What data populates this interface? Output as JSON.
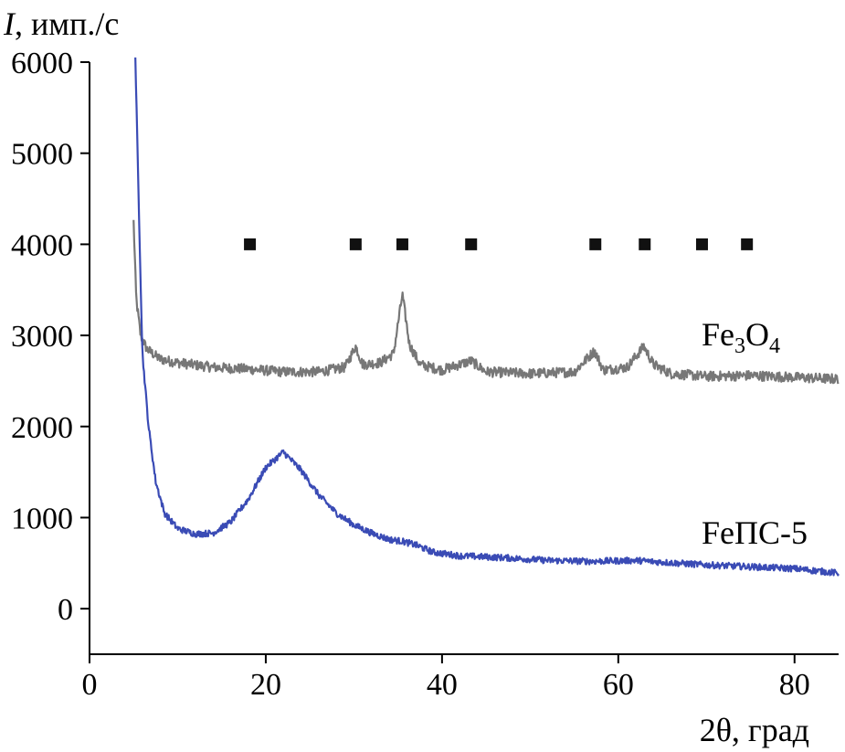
{
  "chart_data": {
    "type": "line",
    "ylabel_symbol": "I",
    "ylabel_unit": ", имп./с",
    "xlabel": "2θ, град",
    "xlim": [
      0,
      85
    ],
    "ylim": [
      -500,
      6000
    ],
    "yticks": [
      0,
      1000,
      2000,
      3000,
      4000,
      5000,
      6000
    ],
    "xticks": [
      0,
      20,
      40,
      60,
      80
    ],
    "grid": false,
    "series": [
      {
        "label_main": "Fe",
        "label_sub1": "3",
        "label_mid": "O",
        "label_sub2": "4",
        "color": "#777777",
        "keypoints": [
          [
            5.0,
            4250
          ],
          [
            5.3,
            3400
          ],
          [
            5.8,
            3000
          ],
          [
            6.5,
            2850
          ],
          [
            8,
            2740
          ],
          [
            10,
            2700
          ],
          [
            14,
            2650
          ],
          [
            18,
            2630
          ],
          [
            22,
            2600
          ],
          [
            26,
            2600
          ],
          [
            29,
            2650
          ],
          [
            30.2,
            2880
          ],
          [
            31,
            2680
          ],
          [
            33,
            2700
          ],
          [
            34.5,
            2800
          ],
          [
            35.5,
            3450
          ],
          [
            36.3,
            2900
          ],
          [
            37.5,
            2680
          ],
          [
            40,
            2620
          ],
          [
            43.3,
            2720
          ],
          [
            45,
            2600
          ],
          [
            50,
            2580
          ],
          [
            55,
            2600
          ],
          [
            57.3,
            2830
          ],
          [
            58.3,
            2620
          ],
          [
            61,
            2650
          ],
          [
            62.9,
            2880
          ],
          [
            64,
            2680
          ],
          [
            66,
            2580
          ],
          [
            70,
            2550
          ],
          [
            75,
            2560
          ],
          [
            80,
            2540
          ],
          [
            85,
            2520
          ]
        ]
      },
      {
        "label_main": "FeПС-5",
        "color": "#3a4bb5",
        "keypoints": [
          [
            5.2,
            6050
          ],
          [
            5.5,
            4800
          ],
          [
            6,
            2800
          ],
          [
            6.7,
            2000
          ],
          [
            7.5,
            1400
          ],
          [
            8.5,
            1050
          ],
          [
            10,
            880
          ],
          [
            12,
            820
          ],
          [
            14,
            830
          ],
          [
            16,
            950
          ],
          [
            18,
            1200
          ],
          [
            20,
            1550
          ],
          [
            22,
            1720
          ],
          [
            24,
            1520
          ],
          [
            26,
            1250
          ],
          [
            28,
            1050
          ],
          [
            30,
            920
          ],
          [
            32,
            830
          ],
          [
            34,
            760
          ],
          [
            35.5,
            740
          ],
          [
            37,
            700
          ],
          [
            39,
            620
          ],
          [
            42,
            580
          ],
          [
            47,
            560
          ],
          [
            52,
            530
          ],
          [
            57,
            520
          ],
          [
            62,
            530
          ],
          [
            65,
            510
          ],
          [
            70,
            480
          ],
          [
            75,
            460
          ],
          [
            80,
            440
          ],
          [
            85,
            390
          ]
        ]
      }
    ],
    "markers": {
      "y": 4000,
      "x": [
        18.2,
        30.2,
        35.5,
        43.3,
        57.4,
        63.0,
        69.5,
        74.6
      ]
    }
  }
}
